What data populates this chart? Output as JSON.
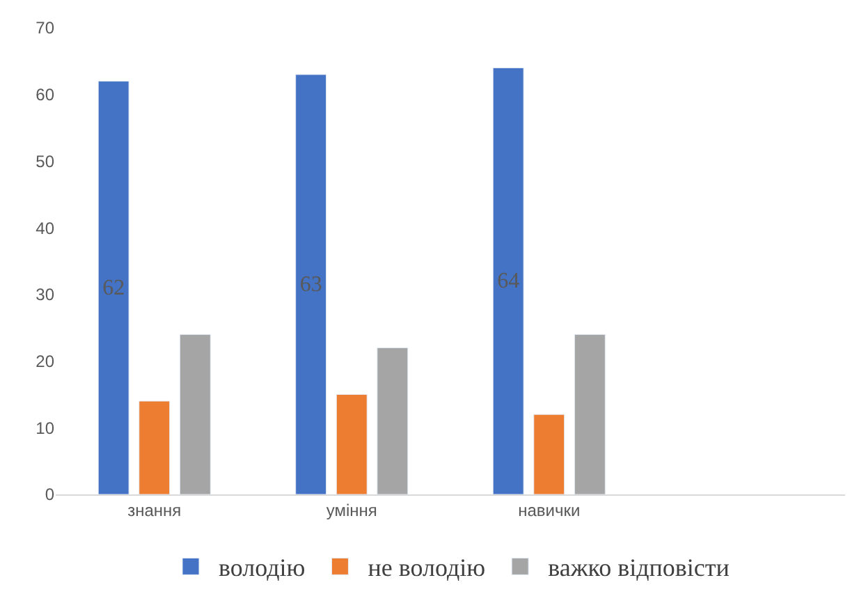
{
  "chart_data": {
    "type": "bar",
    "categories": [
      "знання",
      "уміння",
      "навички",
      null
    ],
    "series": [
      {
        "name": "володію",
        "color": "#4472c4",
        "values": [
          62,
          63,
          64,
          null
        ],
        "value_labels": [
          "62",
          "63",
          "64",
          null
        ]
      },
      {
        "name": "не володію",
        "color": "#ed7d31",
        "values": [
          14,
          15,
          12,
          null
        ]
      },
      {
        "name": "важко відповісти",
        "color": "#a5a5a5",
        "values": [
          24,
          22,
          24,
          null
        ]
      }
    ],
    "ylim": [
      0,
      70
    ],
    "yticks": [
      0,
      10,
      20,
      30,
      40,
      50,
      60,
      70
    ],
    "legend": "bottom"
  }
}
